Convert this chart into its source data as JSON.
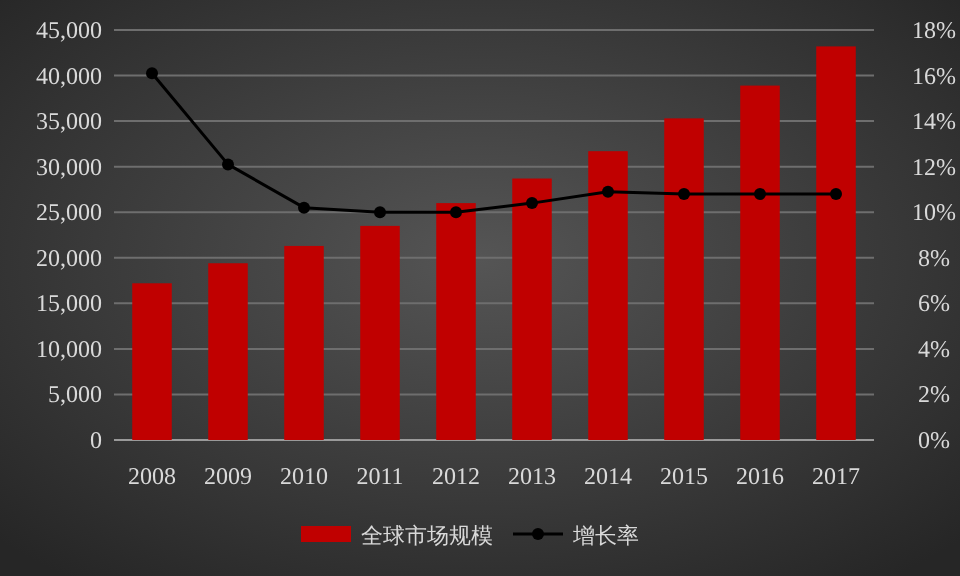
{
  "chart_data": {
    "type": "bar",
    "categories": [
      "2008",
      "2009",
      "2010",
      "2011",
      "2012",
      "2013",
      "2014",
      "2015",
      "2016",
      "2017"
    ],
    "series": [
      {
        "name": "全球市场规模",
        "color": "#c00000",
        "values": [
          17200,
          19400,
          21300,
          23500,
          26000,
          28700,
          31700,
          35300,
          38900,
          43200
        ]
      },
      {
        "name": "增长率",
        "type": "line",
        "axis": "y2",
        "color": "#000000",
        "marker": "circle",
        "values": [
          16.1,
          12.1,
          10.2,
          10.0,
          10.0,
          10.4,
          10.9,
          10.8,
          10.8,
          10.8
        ]
      }
    ],
    "ylim": [
      0,
      45000
    ],
    "yticks": [
      {
        "value": 0,
        "label": "0"
      },
      {
        "value": 5000,
        "label": "5,000"
      },
      {
        "value": 10000,
        "label": "10,000"
      },
      {
        "value": 15000,
        "label": "15,000"
      },
      {
        "value": 20000,
        "label": "20,000"
      },
      {
        "value": 25000,
        "label": "25,000"
      },
      {
        "value": 30000,
        "label": "30,000"
      },
      {
        "value": 35000,
        "label": "35,000"
      },
      {
        "value": 40000,
        "label": "40,000"
      },
      {
        "value": 45000,
        "label": "45,000"
      }
    ],
    "y2lim": [
      0,
      18
    ],
    "y2ticks": [
      {
        "value": 0,
        "label": "0%"
      },
      {
        "value": 2,
        "label": "2%"
      },
      {
        "value": 4,
        "label": "4%"
      },
      {
        "value": 6,
        "label": "6%"
      },
      {
        "value": 8,
        "label": "8%"
      },
      {
        "value": 10,
        "label": "10%"
      },
      {
        "value": 12,
        "label": "12%"
      },
      {
        "value": 14,
        "label": "14%"
      },
      {
        "value": 16,
        "label": "16%"
      },
      {
        "value": 18,
        "label": "18%"
      }
    ],
    "grid": "y",
    "legend": "bottom"
  }
}
